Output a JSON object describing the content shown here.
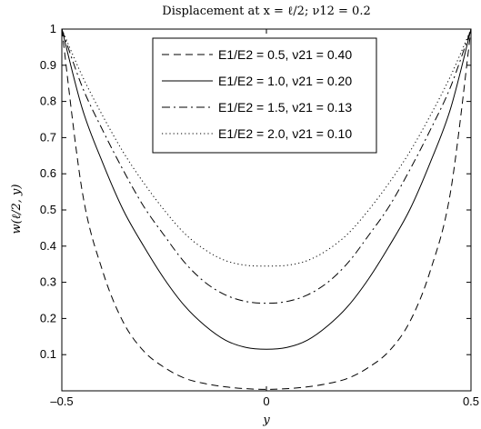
{
  "chart_data": {
    "type": "line",
    "title": "Displacement at x = ℓ/2; ν12 = 0.2",
    "xlabel": "y",
    "ylabel": "w(ℓ/2, y)",
    "xlim": [
      -0.5,
      0.5
    ],
    "ylim": [
      0,
      1
    ],
    "xticks": [
      {
        "value": -0.5,
        "label": "–0.5"
      },
      {
        "value": 0,
        "label": "0"
      },
      {
        "value": 0.5,
        "label": "0.5"
      }
    ],
    "yticks": [
      {
        "value": 0.1,
        "label": "0.1"
      },
      {
        "value": 0.2,
        "label": "0.2"
      },
      {
        "value": 0.3,
        "label": "0.3"
      },
      {
        "value": 0.4,
        "label": "0.4"
      },
      {
        "value": 0.5,
        "label": "0.5"
      },
      {
        "value": 0.6,
        "label": "0.6"
      },
      {
        "value": 0.7,
        "label": "0.7"
      },
      {
        "value": 0.8,
        "label": "0.8"
      },
      {
        "value": 0.9,
        "label": "0.9"
      },
      {
        "value": 1,
        "label": "1"
      }
    ],
    "grid": false,
    "legend_position": "top-center",
    "x": [
      -0.5,
      -0.45,
      -0.4,
      -0.35,
      -0.3,
      -0.25,
      -0.2,
      -0.15,
      -0.1,
      -0.05,
      0,
      0.05,
      0.1,
      0.15,
      0.2,
      0.25,
      0.3,
      0.35,
      0.4,
      0.45,
      0.5
    ],
    "series": [
      {
        "name": "E1/E2 = 0.5, ν21 = 0.40",
        "style": "dashed",
        "values": [
          1.0,
          0.55,
          0.33,
          0.19,
          0.11,
          0.065,
          0.035,
          0.02,
          0.011,
          0.006,
          0.004,
          0.006,
          0.011,
          0.02,
          0.035,
          0.065,
          0.11,
          0.19,
          0.33,
          0.55,
          1.0
        ]
      },
      {
        "name": "E1/E2 = 1.0, ν21 = 0.20",
        "style": "solid",
        "values": [
          1.0,
          0.78,
          0.63,
          0.5,
          0.4,
          0.31,
          0.235,
          0.18,
          0.14,
          0.12,
          0.115,
          0.12,
          0.14,
          0.18,
          0.235,
          0.31,
          0.4,
          0.5,
          0.63,
          0.78,
          1.0
        ]
      },
      {
        "name": "E1/E2 = 1.5, ν21 = 0.13",
        "style": "dashdot",
        "values": [
          1.0,
          0.84,
          0.72,
          0.61,
          0.51,
          0.43,
          0.355,
          0.3,
          0.265,
          0.247,
          0.242,
          0.247,
          0.265,
          0.3,
          0.355,
          0.43,
          0.51,
          0.61,
          0.72,
          0.84,
          1.0
        ]
      },
      {
        "name": "E1/E2 = 2.0, ν21 = 0.10",
        "style": "dotted",
        "values": [
          1.0,
          0.87,
          0.76,
          0.66,
          0.575,
          0.5,
          0.435,
          0.39,
          0.36,
          0.347,
          0.345,
          0.347,
          0.36,
          0.39,
          0.435,
          0.5,
          0.575,
          0.66,
          0.76,
          0.87,
          1.0
        ]
      }
    ]
  }
}
